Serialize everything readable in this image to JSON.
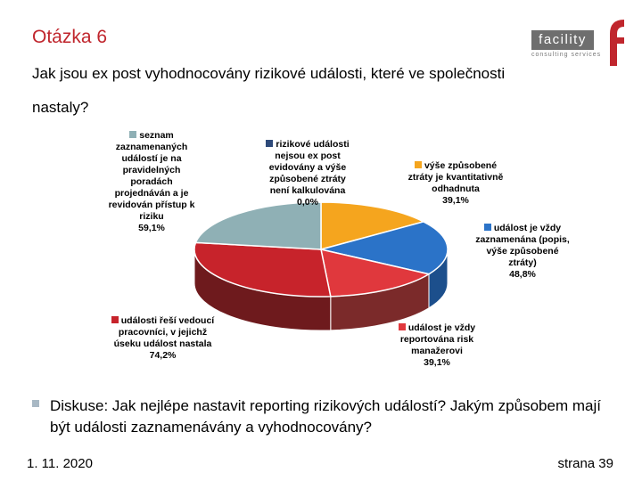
{
  "header": {
    "title": "Otázka 6",
    "question": "Jak jsou ex post vyhodnocovány rizikové události, které ve společnosti nastaly?",
    "logo_text": "facility",
    "logo_subtext": "consulting services",
    "logo_mark": "f"
  },
  "chart_data": {
    "type": "pie",
    "title": "",
    "unit": "%",
    "categories": [
      "rizikové události nejsou ex post evidovány a výše způsobené ztráty není kalkulována",
      "výše způsobené ztráty je kvantitativně odhadnuta",
      "událost je vždy zaznamenána (popis, výše způsobené ztráty)",
      "událost je vždy reportována risk manažerovi",
      "události řeší vedoucí pracovníci, v jejichž úseku událost nastala",
      "seznam zaznamenaných událostí je na pravidelných poradách projednáván a je revidován přístup k riziku"
    ],
    "values": [
      0.0,
      39.1,
      48.8,
      39.1,
      74.2,
      59.1
    ],
    "value_labels": [
      "0,0%",
      "39,1%",
      "48,8%",
      "39,1%",
      "74,2%",
      "59,1%"
    ],
    "colors": [
      "#2e4a7a",
      "#f5a51e",
      "#2b73c8",
      "#e0383d",
      "#c7232b",
      "#8fb0b5"
    ],
    "side_colors": [
      "#1f3354",
      "#b57813",
      "#1c4f8c",
      "#7b2a2a",
      "#6e1a1d",
      "#5f7d82"
    ],
    "label_lines": [
      [
        "rizikové události",
        "nejsou ex post",
        "evidovány a výše",
        "způsobené ztráty",
        "není kalkulována"
      ],
      [
        "výše způsobené",
        "ztráty je kvantitativně",
        "odhadnuta"
      ],
      [
        "událost je vždy",
        "zaznamenána (popis,",
        "výše způsobené",
        "ztráty)"
      ],
      [
        "událost je vždy",
        "reportována risk",
        "manažerovi"
      ],
      [
        "události řeší vedoucí",
        "pracovníci, v jejichž",
        "úseku událost nastala"
      ],
      [
        "seznam",
        "zaznamenaných",
        "událostí je na",
        "pravidelných",
        "poradách",
        "projednáván a je",
        "revidován přístup k",
        "riziku"
      ]
    ]
  },
  "discussion": "Diskuse: Jak nejlépe nastavit reporting rizikových událostí? Jakým způsobem mají být události zaznamenávány a vyhodnocovány?",
  "footer": {
    "date": "1. 11. 2020",
    "page": "strana 39"
  }
}
